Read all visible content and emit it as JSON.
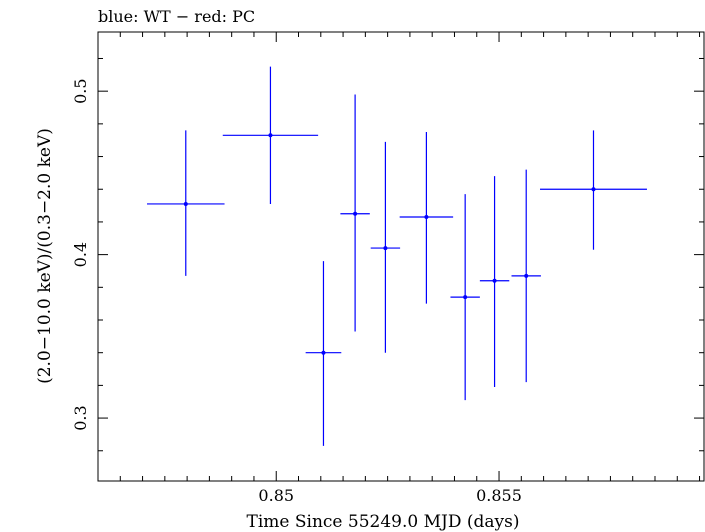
{
  "chart_data": {
    "type": "scatter",
    "title": "blue: WT − red: PC",
    "xlabel": "Time Since 55249.0 MJD (days)",
    "ylabel": "(2.0−10.0 keV)/(0.3−2.0 keV)",
    "xlim": [
      0.846,
      0.8596
    ],
    "ylim": [
      0.2615,
      0.5362
    ],
    "xticks": [
      0.85,
      0.855
    ],
    "xtick_labels": [
      "0.85",
      "0.855"
    ],
    "yticks": [
      0.3,
      0.4,
      0.5
    ],
    "ytick_labels": [
      "0.3",
      "0.4",
      "0.5"
    ],
    "grid": false,
    "series": [
      {
        "color": "#0000ff",
        "points": [
          {
            "x": 0.84797,
            "y": 0.431,
            "xerr": 0.00087,
            "yerr_low": 0.044,
            "yerr_high": 0.045
          },
          {
            "x": 0.84987,
            "y": 0.473,
            "xerr": 0.00107,
            "yerr_low": 0.042,
            "yerr_high": 0.042
          },
          {
            "x": 0.85106,
            "y": 0.34,
            "xerr": 0.0004,
            "yerr_low": 0.057,
            "yerr_high": 0.056
          },
          {
            "x": 0.85177,
            "y": 0.425,
            "xerr": 0.00033,
            "yerr_low": 0.072,
            "yerr_high": 0.073
          },
          {
            "x": 0.85245,
            "y": 0.404,
            "xerr": 0.00033,
            "yerr_low": 0.064,
            "yerr_high": 0.065
          },
          {
            "x": 0.85337,
            "y": 0.423,
            "xerr": 0.0006,
            "yerr_low": 0.053,
            "yerr_high": 0.052
          },
          {
            "x": 0.85424,
            "y": 0.374,
            "xerr": 0.00033,
            "yerr_low": 0.063,
            "yerr_high": 0.063
          },
          {
            "x": 0.8549,
            "y": 0.384,
            "xerr": 0.00033,
            "yerr_low": 0.065,
            "yerr_high": 0.064
          },
          {
            "x": 0.85561,
            "y": 0.387,
            "xerr": 0.00033,
            "yerr_low": 0.065,
            "yerr_high": 0.065
          },
          {
            "x": 0.85712,
            "y": 0.44,
            "xerr": 0.0012,
            "yerr_low": 0.037,
            "yerr_high": 0.036
          }
        ]
      }
    ]
  }
}
